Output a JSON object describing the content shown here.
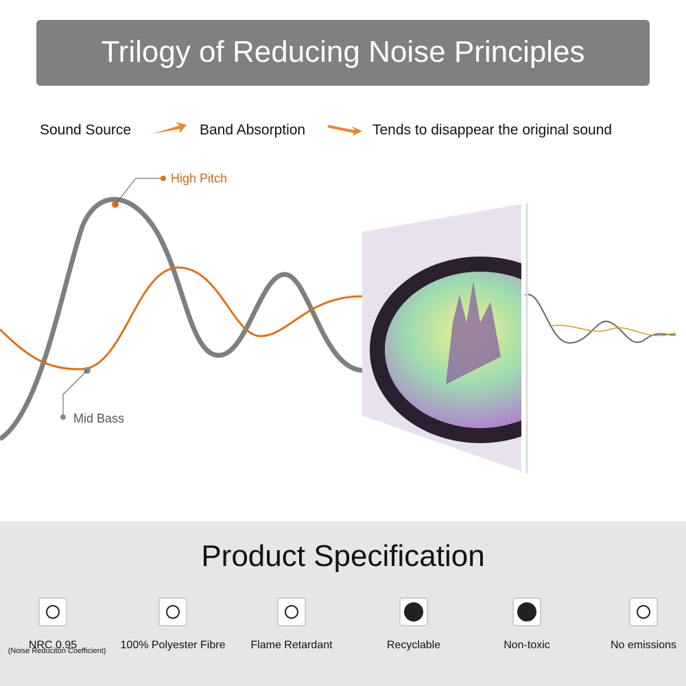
{
  "header": {
    "title": "Trilogy of Reducing Noise Principles"
  },
  "flow": {
    "steps": [
      "Sound Source",
      "Band Absorption",
      "Tends to disappear the original sound"
    ]
  },
  "diagram": {
    "labels": {
      "high": "High Pitch",
      "bass": "Mid Bass"
    }
  },
  "specification": {
    "title": "Product Specification",
    "features": [
      {
        "label": "NRC 0.95",
        "note": "(Noise Reduciton Coefficient)"
      },
      {
        "label": "100% Polyester Fibre"
      },
      {
        "label": "Flame Retardant"
      },
      {
        "label": "Recyclable"
      },
      {
        "label": "Non-toxic"
      },
      {
        "label": "No emissions"
      }
    ]
  }
}
